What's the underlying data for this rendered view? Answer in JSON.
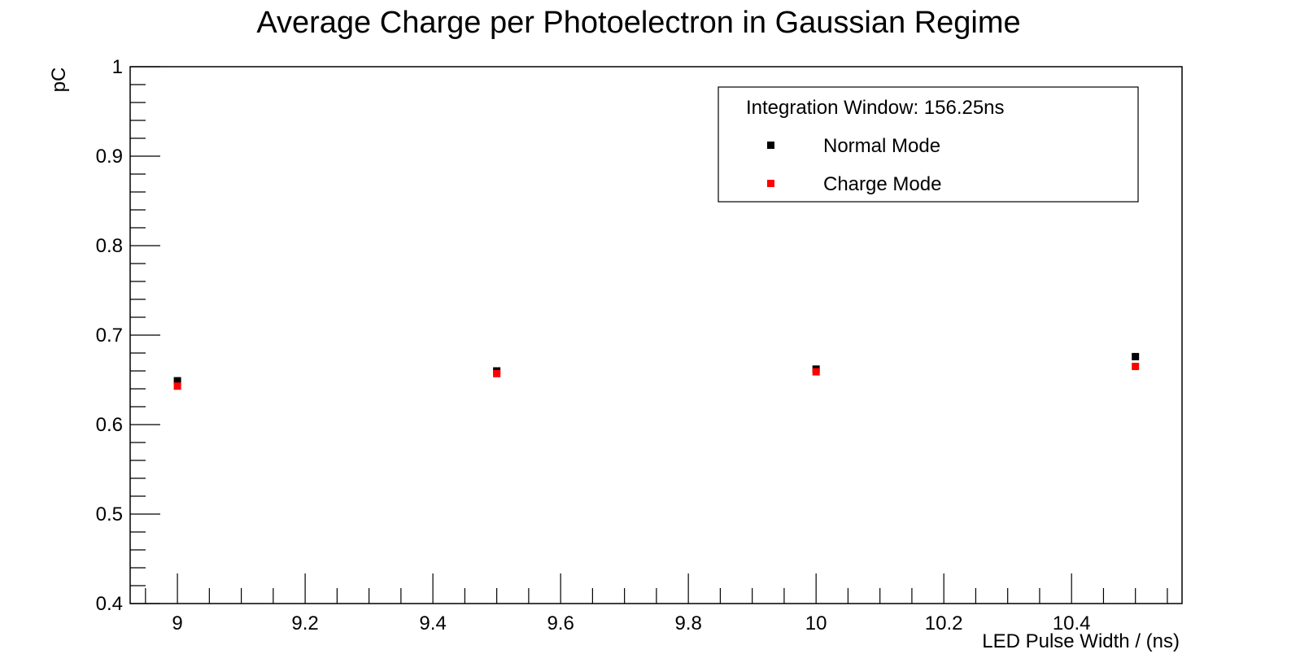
{
  "chart_data": {
    "type": "scatter",
    "title": "Average Charge per Photoelectron in Gaussian Regime",
    "xlabel": "LED Pulse Width / (ns)",
    "ylabel": "pC",
    "xlim": [
      8.926,
      10.573
    ],
    "ylim": [
      0.4,
      1.0
    ],
    "x_ticks": [
      "9",
      "9.2",
      "9.4",
      "9.6",
      "9.8",
      "10",
      "10.2",
      "10.4"
    ],
    "y_ticks": [
      "0.4",
      "0.5",
      "0.6",
      "0.7",
      "0.8",
      "0.9",
      "1"
    ],
    "grid": false,
    "legend": {
      "position": "top-right",
      "header": "Integration Window: 156.25ns"
    },
    "series": [
      {
        "name": "Normal Mode",
        "color": "#000000",
        "x": [
          9.0,
          9.5,
          10.0,
          10.5
        ],
        "y": [
          0.649,
          0.66,
          0.662,
          0.676
        ]
      },
      {
        "name": "Charge Mode",
        "color": "#ff0000",
        "x": [
          9.0,
          9.5,
          10.0,
          10.5
        ],
        "y": [
          0.643,
          0.657,
          0.659,
          0.665
        ]
      }
    ]
  }
}
